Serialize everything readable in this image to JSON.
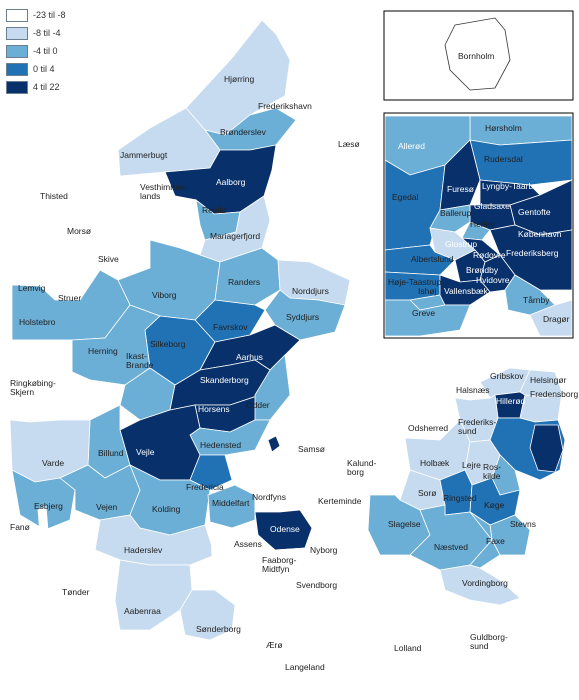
{
  "legend": {
    "items": [
      {
        "label": "-23 til -8",
        "color": "#ffffff"
      },
      {
        "label": "-8 til -4",
        "color": "#c6dbef"
      },
      {
        "label": "-4 til 0",
        "color": "#6baed6"
      },
      {
        "label": "0 til 4",
        "color": "#2171b5"
      },
      {
        "label": "4 til 22",
        "color": "#08306b"
      }
    ]
  },
  "municipalities": {
    "hjoerring": "Hjørring",
    "frederikshavn": "Frederikshavn",
    "broenderslev": "Brønderslev",
    "laesoe": "Læsø",
    "jammerbugt": "Jammerbugt",
    "aalborg": "Aalborg",
    "thisted": "Thisted",
    "vesthimmerlands": "Vesthimmer-\nlands",
    "rebild": "Rebild",
    "morsoe": "Morsø",
    "mariagerfjord": "Mariagerfjord",
    "skive": "Skive",
    "lemvig": "Lemvig",
    "struer": "Struer",
    "viborg": "Viborg",
    "randers": "Randers",
    "norddjurs": "Norddjurs",
    "holstebro": "Holstebro",
    "syddjurs": "Syddjurs",
    "favrskov": "Favrskov",
    "silkeborg": "Silkeborg",
    "herning": "Herning",
    "ikast_brande": "Ikast-\nBrande",
    "aarhus": "Aarhus",
    "skanderborg": "Skanderborg",
    "ringkoebing": "Ringkøbing-\nSkjern",
    "horsens": "Horsens",
    "odder": "Odder",
    "hedensted": "Hedensted",
    "samsoe": "Samsø",
    "vejle": "Vejle",
    "billund": "Billund",
    "varde": "Varde",
    "fredericia": "Fredericia",
    "esbjerg": "Esbjerg",
    "vejen": "Vejen",
    "kolding": "Kolding",
    "middelfart": "Middelfart",
    "nordfyns": "Nordfyns",
    "kerteminde": "Kerteminde",
    "fanoe": "Fanø",
    "odense": "Odense",
    "haderslev": "Haderslev",
    "assens": "Assens",
    "faaborg": "Faaborg-\nMidtfyn",
    "nyborg": "Nyborg",
    "svendborg": "Svendborg",
    "toender": "Tønder",
    "aabenraa": "Aabenraa",
    "soenderborg": "Sønderborg",
    "aeroe": "Ærø",
    "langeland": "Langeland",
    "odsherred": "Odsherred",
    "halsnaes": "Halsnæs",
    "gribskov": "Gribskov",
    "helsingoer": "Helsingør",
    "hilleroed": "Hillerød",
    "fredensborg": "Fredensborg",
    "frederikssund": "Frederiks-\nsund",
    "kalundborg": "Kalund-\nborg",
    "holbaek": "Holbæk",
    "lejre": "Lejre",
    "roskilde": "Ros-\nkilde",
    "soroe": "Sorø",
    "ringsted": "Ringsted",
    "koege": "Køge",
    "stevns": "Stevns",
    "slagelse": "Slagelse",
    "faxe": "Faxe",
    "naestved": "Næstved",
    "vordingborg": "Vordingborg",
    "lolland": "Lolland",
    "guldborgsund": "Guldborg-\nsund",
    "bornholm": "Bornholm"
  },
  "inset_capital": {
    "hoersholm": "Hørsholm",
    "alleroed": "Allerød",
    "rudersdal": "Rudersdal",
    "egedal": "Egedal",
    "furesoe": "Furesø",
    "lyngby": "Lyngby-Taarbæk",
    "gladsaxe": "Gladsaxe",
    "gentofte": "Gentofte",
    "ballerup": "Ballerup",
    "herlev": "Herlev",
    "koebenhavn": "København",
    "glostrup": "Glostrup",
    "roedovre": "Rødovre",
    "frederiksberg": "Frederiksberg",
    "albertslund": "Albertslund",
    "broendby": "Brøndby",
    "hoeje_taastrup": "Høje-Taastrup",
    "hvidovre": "Hvidovre",
    "ishoej": "Ishøj",
    "vallensbaek": "Vallensbæk",
    "taarnby": "Tårnby",
    "greve": "Greve",
    "dragoer": "Dragør"
  }
}
